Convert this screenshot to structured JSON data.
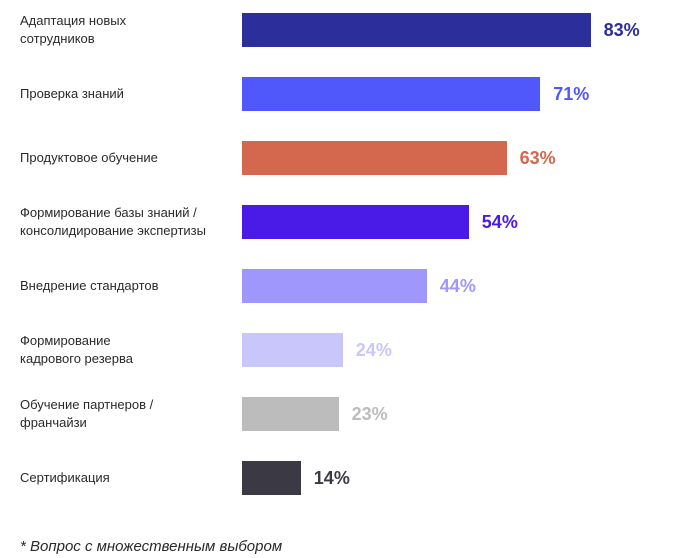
{
  "chart_data": {
    "type": "bar",
    "orientation": "horizontal",
    "categories": [
      "Адаптация новых\nсотрудников",
      "Проверка знаний",
      "Продуктовое обучение",
      "Формирование базы знаний /\nконсолидирование экспертизы",
      "Внедрение стандартов",
      "Формирование\nкадрового резерва",
      "Обучение партнеров /\nфранчайзи",
      "Сертификация"
    ],
    "values": [
      83,
      71,
      63,
      54,
      44,
      24,
      23,
      14
    ],
    "value_labels": [
      "83%",
      "71%",
      "63%",
      "54%",
      "44%",
      "24%",
      "23%",
      "14%"
    ],
    "colors": [
      "#2b2e9b",
      "#5058fb",
      "#d4684f",
      "#4a1be6",
      "#9f97fb",
      "#c9c6fc",
      "#bcbcbc",
      "#3b3a44"
    ],
    "xlim": [
      0,
      100
    ],
    "grid": false,
    "legend": "none"
  },
  "footnote": "* Вопрос с множественным выбором"
}
